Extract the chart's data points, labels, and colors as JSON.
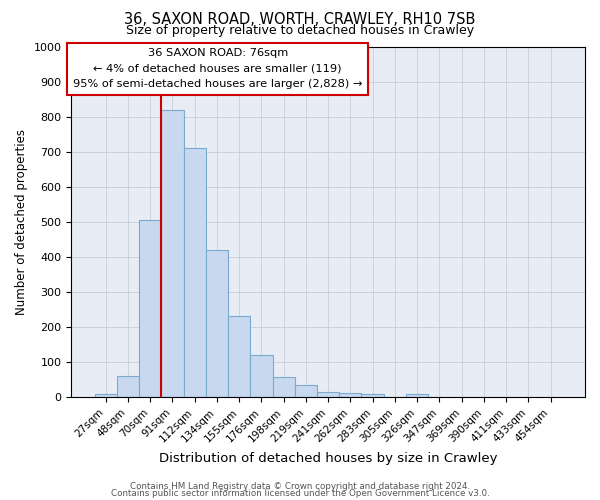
{
  "title": "36, SAXON ROAD, WORTH, CRAWLEY, RH10 7SB",
  "subtitle": "Size of property relative to detached houses in Crawley",
  "xlabel": "Distribution of detached houses by size in Crawley",
  "ylabel": "Number of detached properties",
  "bar_labels": [
    "27sqm",
    "48sqm",
    "70sqm",
    "91sqm",
    "112sqm",
    "134sqm",
    "155sqm",
    "176sqm",
    "198sqm",
    "219sqm",
    "241sqm",
    "262sqm",
    "283sqm",
    "305sqm",
    "326sqm",
    "347sqm",
    "369sqm",
    "390sqm",
    "411sqm",
    "433sqm",
    "454sqm"
  ],
  "bar_values": [
    8,
    60,
    505,
    820,
    710,
    420,
    230,
    120,
    57,
    35,
    15,
    12,
    10,
    0,
    10,
    0,
    0,
    0,
    0,
    0,
    0
  ],
  "bar_color": "#c8d8ee",
  "bar_edge_color": "#7aabcf",
  "vline_color": "#cc0000",
  "ylim": [
    0,
    1000
  ],
  "yticks": [
    0,
    100,
    200,
    300,
    400,
    500,
    600,
    700,
    800,
    900,
    1000
  ],
  "annotation_line1": "36 SAXON ROAD: 76sqm",
  "annotation_line2": "← 4% of detached houses are smaller (119)",
  "annotation_line3": "95% of semi-detached houses are larger (2,828) →",
  "footer_line1": "Contains HM Land Registry data © Crown copyright and database right 2024.",
  "footer_line2": "Contains public sector information licensed under the Open Government Licence v3.0.",
  "fig_bg_color": "#ffffff",
  "plot_bg_color": "#e8edf5",
  "grid_color": "#c8cdd8",
  "vline_index": 2.5
}
